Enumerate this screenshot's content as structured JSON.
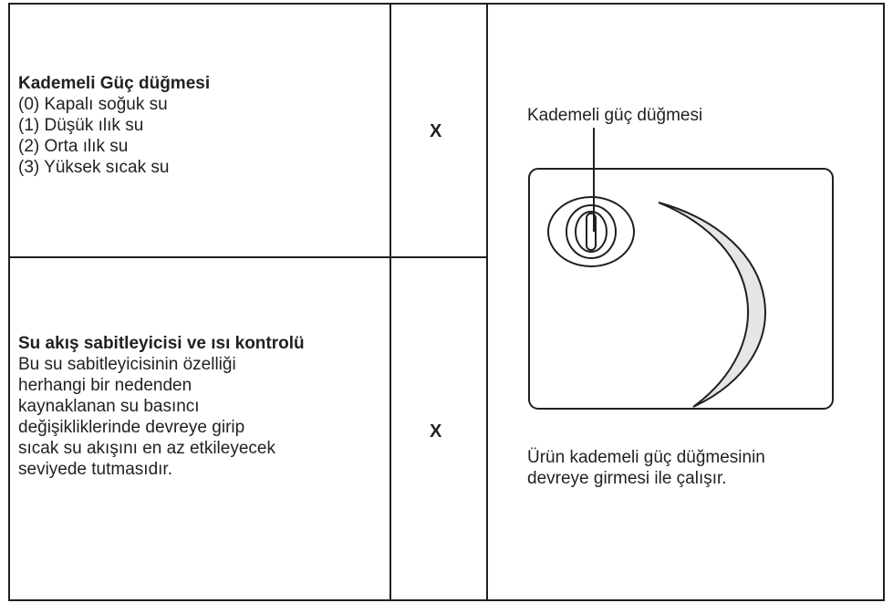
{
  "rows": [
    {
      "title": "Kademeli Güç düğmesi",
      "lines": [
        "(0) Kapalı soğuk su",
        "(1) Düşük ılık su",
        "(2) Orta ılık su",
        "(3) Yüksek sıcak su"
      ],
      "mark": "X"
    },
    {
      "title": "Su akış sabitleyicisi ve ısı kontrolü",
      "lines": [
        "Bu su sabitleyicisinin özelliği",
        "herhangi bir nedenden",
        "kaynaklanan su basıncı",
        "değişikliklerinde devreye girip",
        "sıcak su akışını en az etkileyecek",
        "seviyede tutmasıdır."
      ],
      "mark": "X"
    }
  ],
  "figure": {
    "label": "Kademeli güç düğmesi",
    "caption": "Ürün kademeli güç düğmesinin devreye girmesi ile çalışır."
  }
}
